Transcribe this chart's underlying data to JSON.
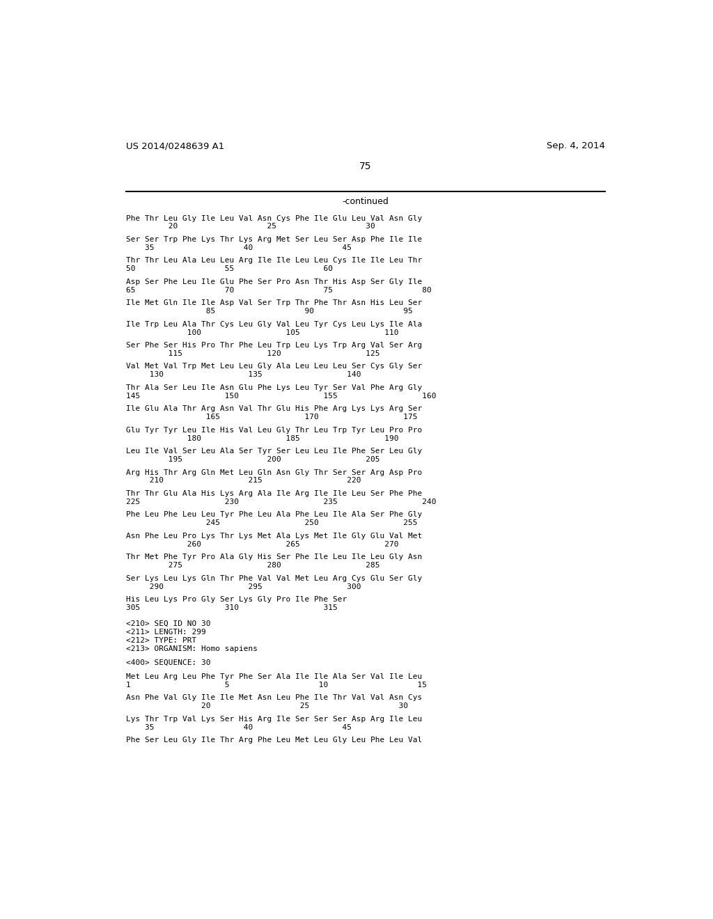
{
  "header_left": "US 2014/0248639 A1",
  "header_right": "Sep. 4, 2014",
  "page_number": "75",
  "continued_label": "-continued",
  "bg": "#ffffff",
  "body": [
    [
      "Phe Thr Leu Gly Ile Leu Val Asn Cys Phe Ile Glu Leu Val Asn Gly",
      "         20                   25                   30"
    ],
    [
      "Ser Ser Trp Phe Lys Thr Lys Arg Met Ser Leu Ser Asp Phe Ile Ile",
      "    35                   40                   45"
    ],
    [
      "Thr Thr Leu Ala Leu Leu Arg Ile Ile Leu Leu Cys Ile Ile Leu Thr",
      "50                   55                   60"
    ],
    [
      "Asp Ser Phe Leu Ile Glu Phe Ser Pro Asn Thr His Asp Ser Gly Ile",
      "65                   70                   75                   80"
    ],
    [
      "Ile Met Gln Ile Ile Asp Val Ser Trp Thr Phe Thr Asn His Leu Ser",
      "                 85                   90                   95"
    ],
    [
      "Ile Trp Leu Ala Thr Cys Leu Gly Val Leu Tyr Cys Leu Lys Ile Ala",
      "             100                  105                  110"
    ],
    [
      "Ser Phe Ser His Pro Thr Phe Leu Trp Leu Lys Trp Arg Val Ser Arg",
      "         115                  120                  125"
    ],
    [
      "Val Met Val Trp Met Leu Leu Gly Ala Leu Leu Leu Ser Cys Gly Ser",
      "     130                  135                  140"
    ],
    [
      "Thr Ala Ser Leu Ile Asn Glu Phe Lys Leu Tyr Ser Val Phe Arg Gly",
      "145                  150                  155                  160"
    ],
    [
      "Ile Glu Ala Thr Arg Asn Val Thr Glu His Phe Arg Lys Lys Arg Ser",
      "                 165                  170                  175"
    ],
    [
      "Glu Tyr Tyr Leu Ile His Val Leu Gly Thr Leu Trp Tyr Leu Pro Pro",
      "             180                  185                  190"
    ],
    [
      "Leu Ile Val Ser Leu Ala Ser Tyr Ser Leu Leu Ile Phe Ser Leu Gly",
      "         195                  200                  205"
    ],
    [
      "Arg His Thr Arg Gln Met Leu Gln Asn Gly Thr Ser Ser Arg Asp Pro",
      "     210                  215                  220"
    ],
    [
      "Thr Thr Glu Ala His Lys Arg Ala Ile Arg Ile Ile Leu Ser Phe Phe",
      "225                  230                  235                  240"
    ],
    [
      "Phe Leu Phe Leu Leu Tyr Phe Leu Ala Phe Leu Ile Ala Ser Phe Gly",
      "                 245                  250                  255"
    ],
    [
      "Asn Phe Leu Pro Lys Thr Lys Met Ala Lys Met Ile Gly Glu Val Met",
      "             260                  265                  270"
    ],
    [
      "Thr Met Phe Tyr Pro Ala Gly His Ser Phe Ile Leu Ile Leu Gly Asn",
      "         275                  280                  285"
    ],
    [
      "Ser Lys Leu Lys Gln Thr Phe Val Val Met Leu Arg Cys Glu Ser Gly",
      "     290                  295                  300"
    ],
    [
      "His Leu Lys Pro Gly Ser Lys Gly Pro Ile Phe Ser",
      "305                  310                  315"
    ]
  ],
  "meta": [
    "<210> SEQ ID NO 30",
    "<211> LENGTH: 299",
    "<212> TYPE: PRT",
    "<213> ORGANISM: Homo sapiens",
    "",
    "<400> SEQUENCE: 30"
  ],
  "seq30": [
    [
      "Met Leu Arg Leu Phe Tyr Phe Ser Ala Ile Ile Ala Ser Val Ile Leu",
      "1                    5                   10                   15"
    ],
    [
      "Asn Phe Val Gly Ile Ile Met Asn Leu Phe Ile Thr Val Val Asn Cys",
      "                20                   25                   30"
    ],
    [
      "Lys Thr Trp Val Lys Ser His Arg Ile Ser Ser Ser Asp Arg Ile Leu",
      "    35                   40                   45"
    ],
    [
      "Phe Ser Leu Gly Ile Thr Arg Phe Leu Met Leu Gly Leu Phe Leu Val",
      ""
    ]
  ]
}
